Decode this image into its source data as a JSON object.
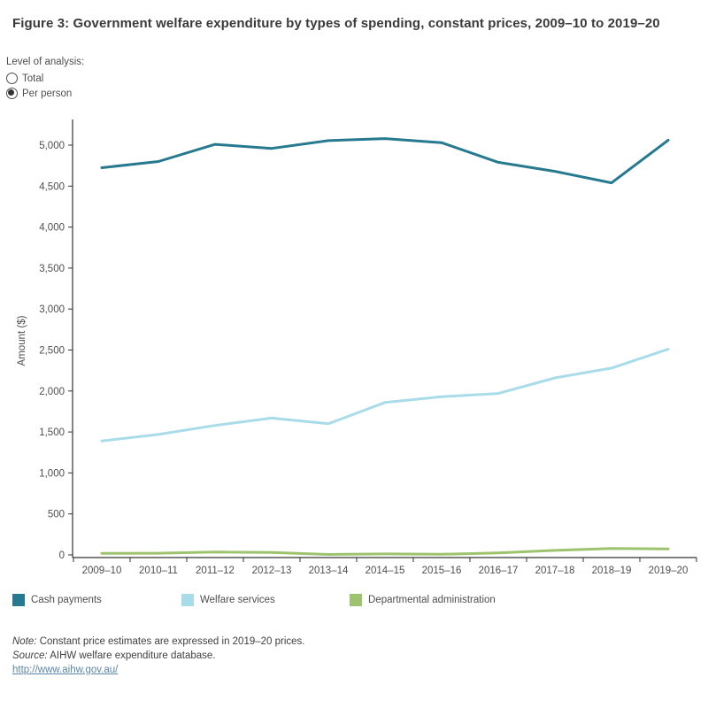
{
  "title": "Figure 3: Government welfare expenditure by types of spending, constant prices, 2009–10 to 2019–20",
  "controls": {
    "label": "Level of analysis:",
    "options": [
      {
        "label": "Total",
        "selected": false
      },
      {
        "label": "Per person",
        "selected": true
      }
    ]
  },
  "chart_data": {
    "type": "line",
    "title": "",
    "xlabel": "",
    "ylabel": "Amount ($)",
    "ylim": [
      0,
      5000
    ],
    "y_tick_step": 500,
    "grid": false,
    "legend_position": "bottom",
    "categories": [
      "2009–10",
      "2010–11",
      "2011–12",
      "2012–13",
      "2013–14",
      "2014–15",
      "2015–16",
      "2016–17",
      "2017–18",
      "2018–19",
      "2019–20"
    ],
    "series": [
      {
        "name": "Cash payments",
        "color": "#26798f",
        "values": [
          4725,
          4800,
          5010,
          4960,
          5055,
          5080,
          5030,
          4790,
          4680,
          4540,
          5060
        ]
      },
      {
        "name": "Welfare services",
        "color": "#a8dce9",
        "values": [
          1390,
          1470,
          1580,
          1670,
          1600,
          1860,
          1930,
          1970,
          2160,
          2280,
          2510
        ]
      },
      {
        "name": "Departmental administration",
        "color": "#9dc36e",
        "values": [
          18,
          20,
          35,
          30,
          5,
          12,
          8,
          25,
          55,
          78,
          72
        ]
      }
    ]
  },
  "notes": {
    "note_label": "Note:",
    "note_text": " Constant price estimates are expressed in 2019–20 prices.",
    "source_label": "Source:",
    "source_text": " AIHW welfare expenditure database.",
    "link": "http://www.aihw.gov.au/"
  },
  "colors": {
    "axis": "#333333",
    "tick_text": "#4e4e4e",
    "title_text": "#3a3a3a",
    "link": "#5c85a8"
  }
}
